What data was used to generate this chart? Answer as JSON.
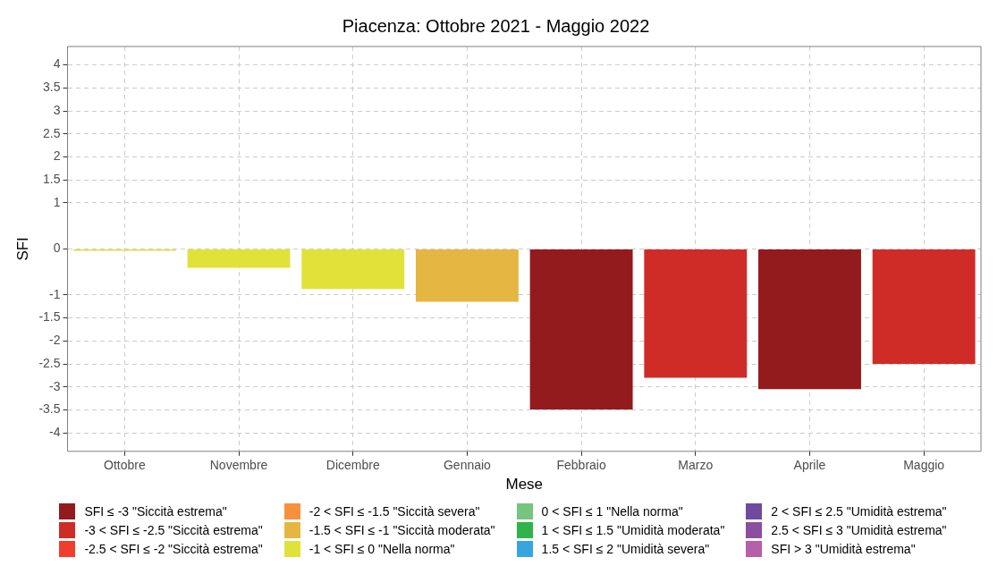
{
  "chart_data": {
    "type": "bar",
    "title": "Piacenza: Ottobre 2021 - Maggio 2022",
    "xlabel": "Mese",
    "ylabel": "SFI",
    "categories": [
      "Ottobre",
      "Novembre",
      "Dicembre",
      "Gennaio",
      "Febbraio",
      "Marzo",
      "Aprile",
      "Maggio"
    ],
    "series": [
      {
        "name": "SFI ≤ -3 \"Siccità estrema\"",
        "color": "#931a1d",
        "values": [
          null,
          null,
          null,
          null,
          -3.49,
          null,
          -3.05,
          null
        ]
      },
      {
        "name": "-3 < SFI ≤ -2.5 \"Siccità estrema\"",
        "color": "#cf2c28",
        "values": [
          null,
          null,
          null,
          null,
          null,
          -2.8,
          null,
          -2.5
        ]
      },
      {
        "name": "-2.5 < SFI ≤ -2 \"Siccità estrema\"",
        "color": "#f03d2c",
        "values": [
          null,
          null,
          null,
          null,
          null,
          null,
          null,
          null
        ]
      },
      {
        "name": "-2 < SFI ≤ -1.5 \"Siccità severa\"",
        "color": "#f7913c",
        "values": [
          null,
          null,
          null,
          null,
          null,
          null,
          null,
          null
        ]
      },
      {
        "name": "-1.5 < SFI ≤ -1 \"Siccità moderata\"",
        "color": "#e6b643",
        "values": [
          null,
          null,
          null,
          -1.15,
          null,
          null,
          null,
          null
        ]
      },
      {
        "name": "-1 < SFI ≤ 0 \"Nella norma\"",
        "color": "#e0e23a",
        "values": [
          -0.04,
          -0.41,
          -0.87,
          null,
          null,
          null,
          null,
          null
        ]
      },
      {
        "name": "0 < SFI ≤ 1 \"Nella norma\"",
        "color": "#76c480",
        "values": [
          null,
          null,
          null,
          null,
          null,
          null,
          null,
          null
        ]
      },
      {
        "name": "1 < SFI ≤ 1.5 \"Umidità moderata\"",
        "color": "#2fb34a",
        "values": [
          null,
          null,
          null,
          null,
          null,
          null,
          null,
          null
        ]
      },
      {
        "name": "1.5 < SFI ≤ 2 \"Umidità severa\"",
        "color": "#38a6de",
        "values": [
          null,
          null,
          null,
          null,
          null,
          null,
          null,
          null
        ]
      },
      {
        "name": "2 < SFI ≤ 2.5 \"Umidità estrema\"",
        "color": "#6f4a9e",
        "values": [
          null,
          null,
          null,
          null,
          null,
          null,
          null,
          null
        ]
      },
      {
        "name": "2.5 < SFI ≤ 3 \"Umidità estrema\"",
        "color": "#8c4ea0",
        "values": [
          null,
          null,
          null,
          null,
          null,
          null,
          null,
          null
        ]
      },
      {
        "name": "SFI > 3 \"Umidità estrema\"",
        "color": "#b560a8",
        "values": [
          null,
          null,
          null,
          null,
          null,
          null,
          null,
          null
        ]
      }
    ],
    "ylim": [
      -4.4,
      4.4
    ],
    "yticks": [
      -4,
      -3.5,
      -3,
      -2.5,
      -2,
      -1.5,
      -1,
      0,
      1,
      1.5,
      2,
      2.5,
      3,
      3.5,
      4
    ],
    "grid": true,
    "legend": "bottom"
  }
}
